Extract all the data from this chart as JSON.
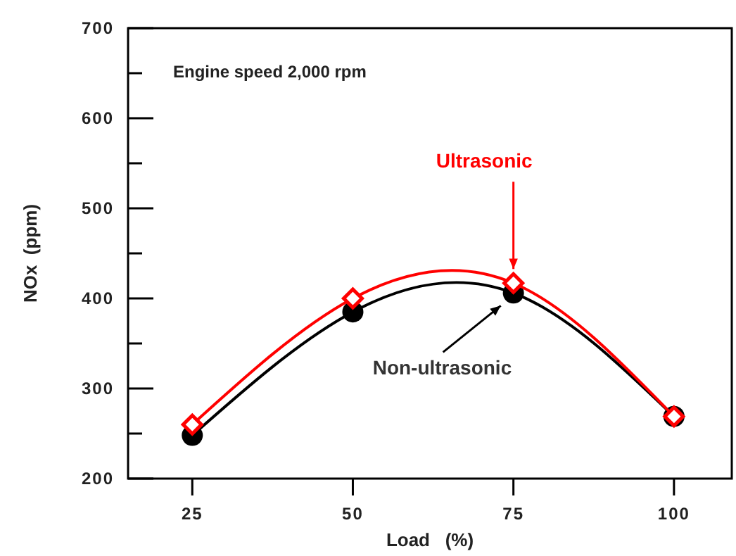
{
  "chart_data": {
    "type": "line",
    "xlabel": "Load   (%)",
    "ylabel": "NOx  (ppm)",
    "x": [
      25,
      50,
      75,
      100
    ],
    "series": [
      {
        "name": "Ultrasonic",
        "color": "#ff0000",
        "values": [
          260,
          400,
          417,
          269
        ],
        "marker": "diamond"
      },
      {
        "name": "Non-ultrasonic",
        "color": "#000000",
        "values": [
          248,
          385,
          406,
          269
        ],
        "marker": "circle"
      }
    ],
    "xlim": [
      15,
      109
    ],
    "xticks": [
      25,
      50,
      75,
      100
    ],
    "ylim": [
      200,
      700
    ],
    "yticks": [
      200,
      {
        "value": 250,
        "label": null
      },
      300,
      {
        "value": 350,
        "label": null
      },
      400,
      {
        "value": 450,
        "label": null
      },
      500,
      {
        "value": 550,
        "label": null
      },
      600,
      {
        "value": 650,
        "label": null
      },
      700
    ],
    "annotations": [
      "Engine speed 2,000 rpm"
    ],
    "grid": false
  }
}
